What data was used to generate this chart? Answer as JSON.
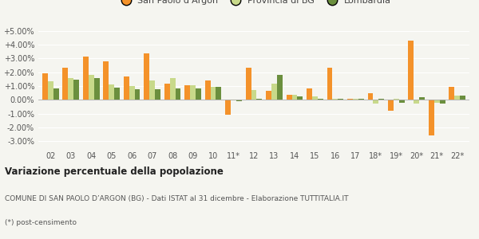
{
  "categories": [
    "02",
    "03",
    "04",
    "05",
    "06",
    "07",
    "08",
    "09",
    "10",
    "11*",
    "12",
    "13",
    "14",
    "15",
    "16",
    "17",
    "18*",
    "19*",
    "20*",
    "21*",
    "22*"
  ],
  "san_paolo": [
    1.9,
    2.3,
    3.15,
    2.8,
    1.7,
    3.35,
    1.2,
    1.05,
    1.4,
    -1.1,
    2.3,
    0.65,
    0.38,
    0.8,
    2.3,
    0.05,
    0.48,
    -0.8,
    4.3,
    -2.6,
    0.95
  ],
  "provincia_bg": [
    1.35,
    1.6,
    1.8,
    1.1,
    1.0,
    1.4,
    1.55,
    1.05,
    0.95,
    -0.05,
    0.7,
    1.2,
    0.38,
    0.25,
    0.1,
    0.05,
    -0.28,
    0.1,
    -0.25,
    -0.2,
    0.3
  ],
  "lombardia": [
    0.85,
    1.45,
    1.6,
    0.9,
    0.75,
    0.75,
    0.8,
    0.8,
    0.95,
    -0.1,
    0.05,
    1.8,
    0.25,
    0.08,
    0.08,
    0.08,
    0.1,
    -0.2,
    0.18,
    -0.25,
    0.28
  ],
  "san_paolo_color": "#f4922a",
  "provincia_bg_color": "#c8d98a",
  "lombardia_color": "#6b8f3e",
  "background_color": "#f5f5f0",
  "grid_color": "#e8e8e0",
  "ylim": [
    -3.5,
    5.5
  ],
  "yticks": [
    -3.0,
    -2.0,
    -1.0,
    0.0,
    1.0,
    2.0,
    3.0,
    4.0,
    5.0
  ],
  "title": "Variazione percentuale della popolazione",
  "subtitle": "COMUNE DI SAN PAOLO D’ARGON (BG) - Dati ISTAT al 31 dicembre - Elaborazione TUTTITALIA.IT",
  "footnote": "(*) post-censimento",
  "legend_labels": [
    "San Paolo d'Argon",
    "Provincia di BG",
    "Lombardia"
  ]
}
